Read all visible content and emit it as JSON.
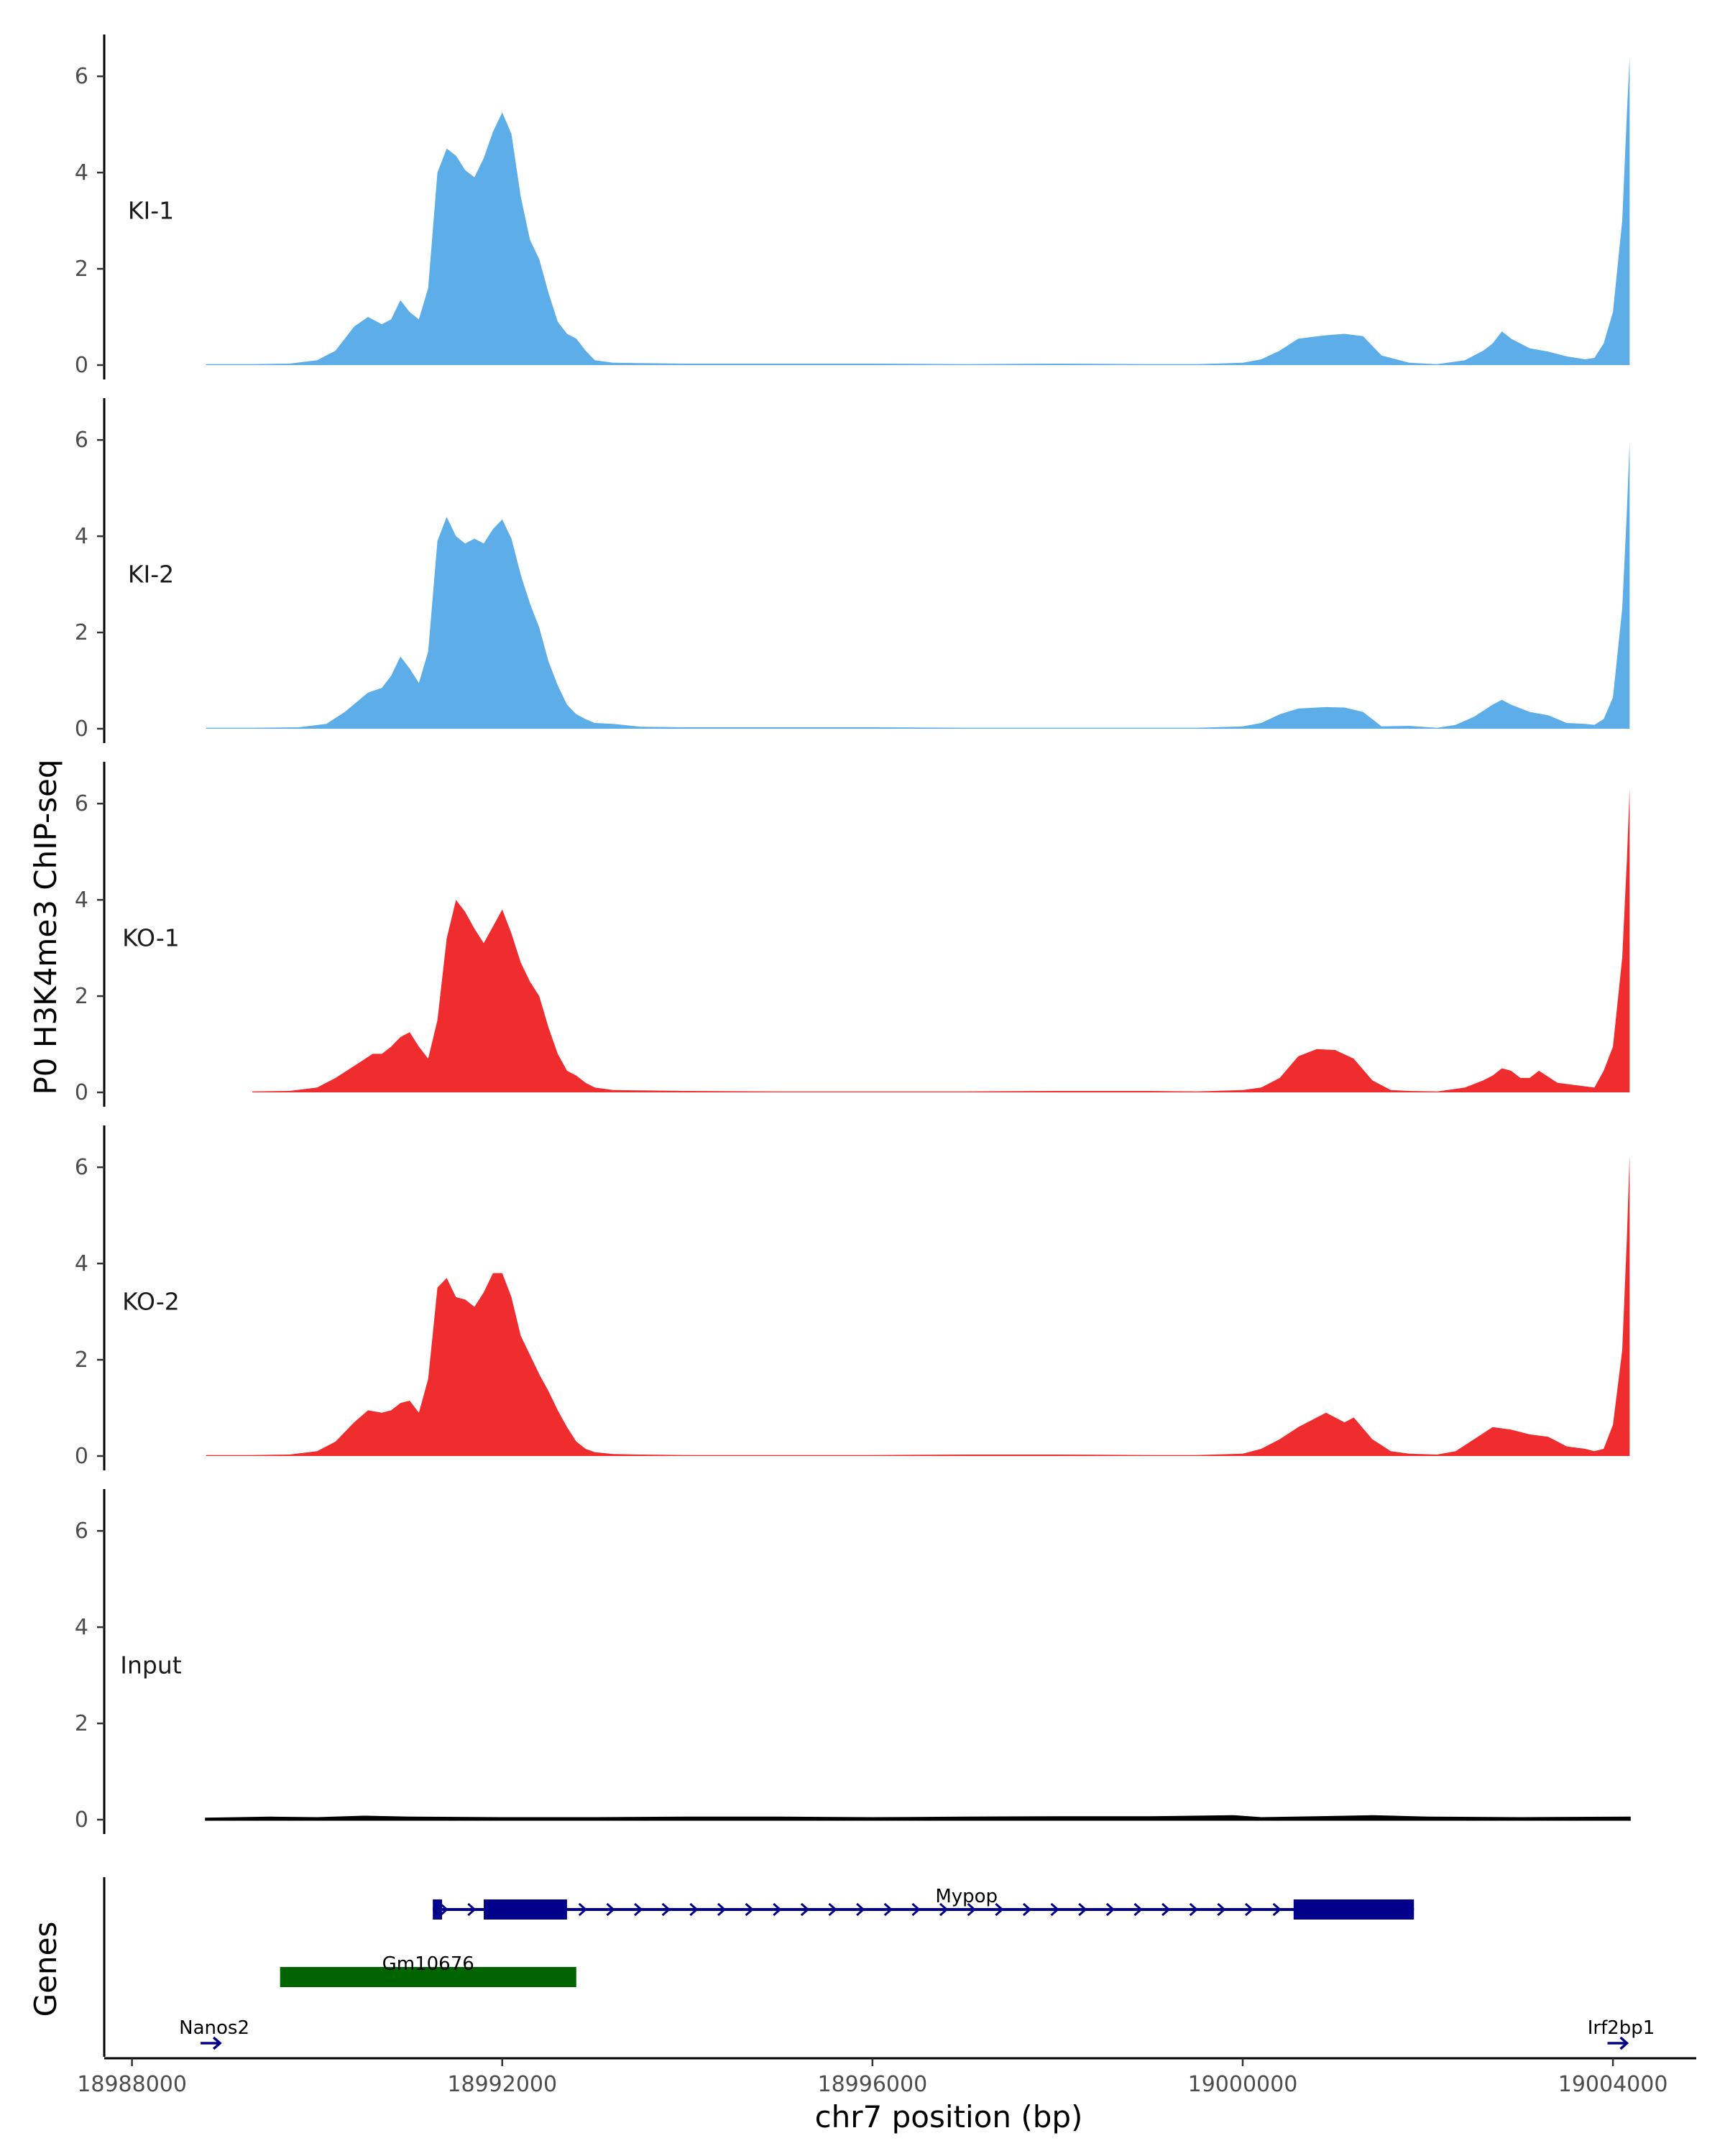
{
  "chart_data": {
    "type": "area",
    "ylabel": "P0 H3K4me3 ChIP-seq",
    "xlabel": "chr7 position (bp)",
    "genes_label": "Genes",
    "xlim": [
      18987700,
      19004900
    ],
    "ylim": [
      0,
      6.6
    ],
    "x_ticks": [
      18988000,
      18992000,
      18996000,
      19000000,
      19004000
    ],
    "x_tick_labels": [
      "18988000",
      "18992000",
      "18996000",
      "19000000",
      "19004000"
    ],
    "y_ticks": [
      0,
      2,
      4,
      6
    ],
    "y_tick_labels": [
      "0",
      "2",
      "4",
      "6"
    ],
    "colors": {
      "KI": "#5dade9",
      "KO": "#ef2d2f",
      "Input": "#000000",
      "mypop": "#00008b",
      "gm": "#006400"
    },
    "tracks": [
      {
        "name": "KI-1",
        "color": "#5dade9",
        "x": [
          18988800,
          18989300,
          18989700,
          18990000,
          18990200,
          18990400,
          18990550,
          18990700,
          18990800,
          18990900,
          18991000,
          18991100,
          18991200,
          18991300,
          18991400,
          18991500,
          18991600,
          18991700,
          18991800,
          18991900,
          18992000,
          18992100,
          18992200,
          18992300,
          18992400,
          18992500,
          18992600,
          18992700,
          18992800,
          18992900,
          18993000,
          18993200,
          18993500,
          18994000,
          18995000,
          18996000,
          18997000,
          18998000,
          18999000,
          18999500,
          19000000,
          19000200,
          19000400,
          19000600,
          19000900,
          19001100,
          19001300,
          19001500,
          19001800,
          19002100,
          19002400,
          19002600,
          19002700,
          19002800,
          19002900,
          19003100,
          19003300,
          19003500,
          19003700,
          19003800,
          19003900,
          19004000,
          19004100,
          19004150,
          19004180
        ],
        "values": [
          0.02,
          0.02,
          0.03,
          0.1,
          0.3,
          0.8,
          1.0,
          0.85,
          0.95,
          1.35,
          1.1,
          0.95,
          1.6,
          4.0,
          4.5,
          4.35,
          4.05,
          3.9,
          4.3,
          4.85,
          5.25,
          4.8,
          3.5,
          2.6,
          2.2,
          1.5,
          0.9,
          0.65,
          0.55,
          0.3,
          0.1,
          0.05,
          0.04,
          0.03,
          0.03,
          0.03,
          0.02,
          0.03,
          0.02,
          0.02,
          0.05,
          0.12,
          0.3,
          0.55,
          0.62,
          0.65,
          0.6,
          0.2,
          0.05,
          0.02,
          0.1,
          0.3,
          0.45,
          0.7,
          0.55,
          0.35,
          0.28,
          0.18,
          0.12,
          0.15,
          0.45,
          1.1,
          3.0,
          5.2,
          6.4
        ]
      },
      {
        "name": "KI-2",
        "color": "#5dade9",
        "x": [
          18988800,
          18989300,
          18989800,
          18990100,
          18990300,
          18990550,
          18990700,
          18990800,
          18990900,
          18991000,
          18991100,
          18991200,
          18991300,
          18991400,
          18991500,
          18991600,
          18991700,
          18991800,
          18991900,
          18992000,
          18992100,
          18992200,
          18992300,
          18992400,
          18992500,
          18992600,
          18992700,
          18992800,
          18992900,
          18993000,
          18993200,
          18993500,
          18994000,
          18995000,
          18996000,
          18997000,
          18998000,
          18999000,
          18999500,
          19000000,
          19000200,
          19000400,
          19000600,
          19000900,
          19001100,
          19001300,
          19001500,
          19001800,
          19002100,
          19002300,
          19002500,
          19002700,
          19002800,
          19002900,
          19003100,
          19003300,
          19003500,
          19003700,
          19003800,
          19003900,
          19004000,
          19004100,
          19004150,
          19004180
        ],
        "values": [
          0.02,
          0.02,
          0.03,
          0.1,
          0.35,
          0.75,
          0.85,
          1.1,
          1.5,
          1.25,
          0.95,
          1.6,
          3.9,
          4.4,
          4.0,
          3.85,
          3.95,
          3.85,
          4.15,
          4.35,
          3.95,
          3.2,
          2.6,
          2.1,
          1.4,
          0.9,
          0.5,
          0.3,
          0.2,
          0.12,
          0.1,
          0.04,
          0.03,
          0.03,
          0.03,
          0.02,
          0.02,
          0.02,
          0.02,
          0.05,
          0.12,
          0.3,
          0.42,
          0.45,
          0.44,
          0.35,
          0.05,
          0.06,
          0.02,
          0.08,
          0.25,
          0.5,
          0.6,
          0.5,
          0.35,
          0.28,
          0.12,
          0.1,
          0.08,
          0.2,
          0.65,
          2.5,
          4.5,
          5.95
        ]
      },
      {
        "name": "KO-1",
        "color": "#ef2d2f",
        "x": [
          18989300,
          18989700,
          18990000,
          18990200,
          18990400,
          18990600,
          18990700,
          18990800,
          18990900,
          18991000,
          18991100,
          18991200,
          18991300,
          18991400,
          18991500,
          18991600,
          18991700,
          18991800,
          18991900,
          18992000,
          18992100,
          18992200,
          18992300,
          18992400,
          18992500,
          18992600,
          18992700,
          18992800,
          18992900,
          18993000,
          18993200,
          18993500,
          18994000,
          18995000,
          18996000,
          18997000,
          18998000,
          18999000,
          18999500,
          19000000,
          19000200,
          19000400,
          19000600,
          19000800,
          19001000,
          19001200,
          19001400,
          19001600,
          19001800,
          19002100,
          19002400,
          19002600,
          19002700,
          19002800,
          19002900,
          19003000,
          19003100,
          19003200,
          19003400,
          19003600,
          19003800,
          19003900,
          19004000,
          19004100,
          19004150,
          19004180
        ],
        "values": [
          0.02,
          0.03,
          0.1,
          0.3,
          0.55,
          0.8,
          0.8,
          0.95,
          1.15,
          1.25,
          0.95,
          0.7,
          1.5,
          3.2,
          4.0,
          3.75,
          3.4,
          3.1,
          3.45,
          3.8,
          3.3,
          2.7,
          2.3,
          2.0,
          1.35,
          0.8,
          0.45,
          0.35,
          0.2,
          0.1,
          0.05,
          0.04,
          0.03,
          0.02,
          0.02,
          0.02,
          0.03,
          0.03,
          0.02,
          0.05,
          0.1,
          0.3,
          0.75,
          0.9,
          0.88,
          0.7,
          0.25,
          0.05,
          0.03,
          0.02,
          0.1,
          0.25,
          0.35,
          0.5,
          0.45,
          0.3,
          0.3,
          0.45,
          0.2,
          0.15,
          0.1,
          0.45,
          0.95,
          2.8,
          4.8,
          6.3
        ]
      },
      {
        "name": "KO-2",
        "color": "#ef2d2f",
        "x": [
          18988800,
          18989300,
          18989700,
          18990000,
          18990200,
          18990400,
          18990550,
          18990700,
          18990800,
          18990900,
          18991000,
          18991100,
          18991200,
          18991300,
          18991400,
          18991500,
          18991600,
          18991700,
          18991800,
          18991900,
          18992000,
          18992100,
          18992200,
          18992300,
          18992400,
          18992500,
          18992600,
          18992700,
          18992800,
          18992900,
          18993000,
          18993200,
          18993500,
          18994000,
          18995000,
          18996000,
          18997000,
          18998000,
          18999000,
          18999500,
          19000000,
          19000200,
          19000400,
          19000600,
          19000800,
          19000900,
          19001000,
          19001100,
          19001200,
          19001400,
          19001600,
          19001800,
          19002100,
          19002300,
          19002500,
          19002700,
          19002900,
          19003100,
          19003300,
          19003500,
          19003700,
          19003800,
          19003900,
          19004000,
          19004100,
          19004150,
          19004180
        ],
        "values": [
          0.02,
          0.02,
          0.03,
          0.1,
          0.3,
          0.7,
          0.95,
          0.9,
          0.95,
          1.1,
          1.15,
          0.9,
          1.6,
          3.5,
          3.7,
          3.3,
          3.25,
          3.1,
          3.4,
          3.8,
          3.8,
          3.3,
          2.5,
          2.1,
          1.7,
          1.35,
          0.95,
          0.6,
          0.3,
          0.15,
          0.08,
          0.04,
          0.03,
          0.02,
          0.02,
          0.02,
          0.03,
          0.03,
          0.02,
          0.02,
          0.05,
          0.15,
          0.35,
          0.6,
          0.8,
          0.9,
          0.8,
          0.7,
          0.8,
          0.35,
          0.1,
          0.05,
          0.03,
          0.1,
          0.35,
          0.6,
          0.55,
          0.45,
          0.4,
          0.2,
          0.15,
          0.1,
          0.15,
          0.65,
          2.2,
          4.5,
          6.25
        ]
      },
      {
        "name": "Input",
        "color": "#000000",
        "x": [
          18988800,
          18989500,
          18990000,
          18990500,
          18991000,
          18992000,
          18993000,
          18994000,
          18995000,
          18996000,
          18997000,
          18998000,
          18999000,
          18999900,
          19000200,
          19000800,
          19001400,
          19002000,
          19003000,
          19004180
        ],
        "values": [
          0.02,
          0.04,
          0.03,
          0.06,
          0.04,
          0.03,
          0.03,
          0.04,
          0.04,
          0.03,
          0.04,
          0.05,
          0.05,
          0.07,
          0.03,
          0.05,
          0.07,
          0.04,
          0.03,
          0.04
        ]
      }
    ],
    "genes": {
      "mypop": {
        "name": "Mypop",
        "start": 18991250,
        "end": 19001850,
        "exons": [
          [
            18991250,
            18991350
          ],
          [
            18991800,
            18992700
          ],
          [
            19000550,
            19001850
          ]
        ]
      },
      "gm10676": {
        "name": "Gm10676",
        "start": 18989600,
        "end": 18992800
      },
      "nanos2": {
        "name": "Nanos2",
        "pos": 18988850
      },
      "irf2bp1": {
        "name": "Irf2bp1",
        "pos": 19004050
      }
    }
  }
}
